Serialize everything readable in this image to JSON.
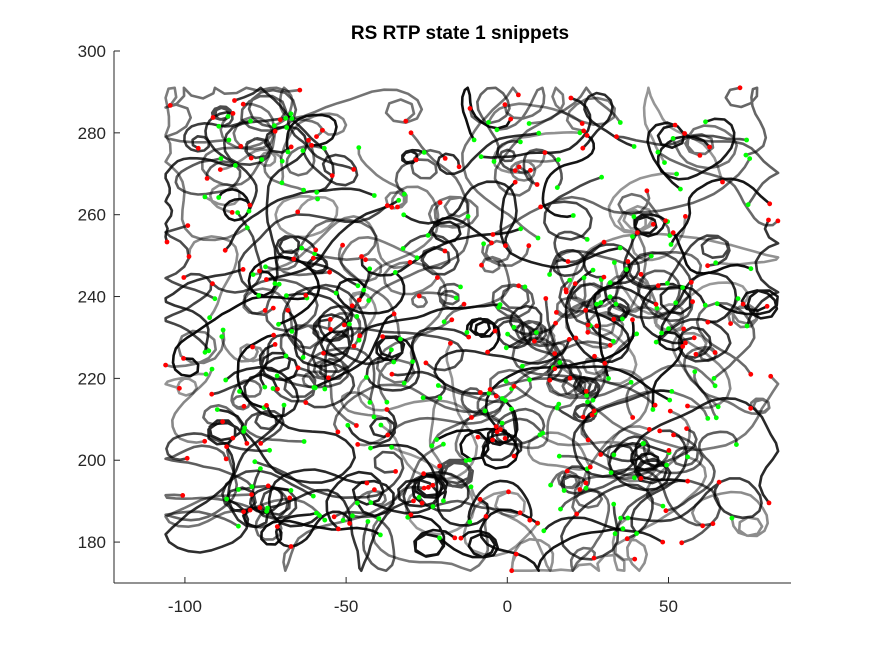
{
  "chart_data": {
    "type": "line",
    "title": "RS  RTP state 1 snippets",
    "xlabel": "",
    "ylabel": "",
    "xlim": [
      -122,
      88
    ],
    "ylim": [
      170,
      300
    ],
    "xticks": [
      -100,
      -50,
      0,
      50
    ],
    "yticks": [
      180,
      200,
      220,
      240,
      260,
      280,
      300
    ],
    "grid": false,
    "legend": "none",
    "data_extent": {
      "x": [
        -106,
        84
      ],
      "y": [
        173,
        291
      ]
    },
    "series_description": "Many overlapping semi-transparent black trajectory snippets; each snippet starts with a green point and ends with a red point",
    "colors": {
      "trajectory": "#000000",
      "start_marker": "#00ff00",
      "end_marker": "#ff0000",
      "axis": "#262626"
    },
    "snippets_rendered_count": 260
  }
}
